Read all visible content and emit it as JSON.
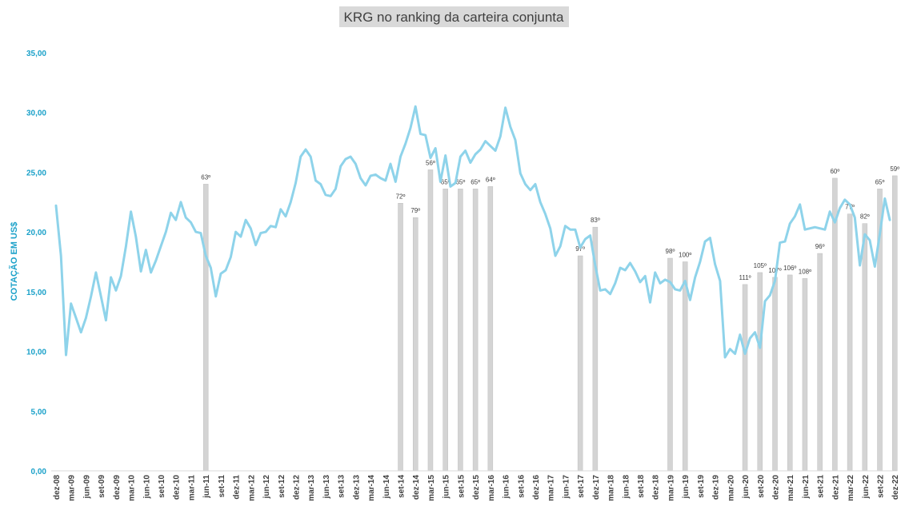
{
  "chart_data": {
    "type": "line",
    "title": "KRG no ranking da carteira conjunta",
    "xlabel": "",
    "ylabel": "COTAÇÃO EM US$",
    "ylim": [
      0,
      35
    ],
    "yticks": [
      "0,00",
      "5,00",
      "10,00",
      "15,00",
      "20,00",
      "25,00",
      "30,00",
      "35,00"
    ],
    "grid": false,
    "legend": "none",
    "colors": {
      "line": "#8ed3ea",
      "bars": "#d4d4d4",
      "yaxis_text": "#1ba1c9",
      "title_bg": "#d9d9d9"
    },
    "x_tick_labels": [
      "dez-08",
      "mar-09",
      "jun-09",
      "set-09",
      "dez-09",
      "mar-10",
      "jun-10",
      "set-10",
      "dez-10",
      "mar-11",
      "jun-11",
      "set-11",
      "dez-11",
      "mar-12",
      "jun-12",
      "set-12",
      "dez-12",
      "mar-13",
      "jun-13",
      "set-13",
      "dez-13",
      "mar-14",
      "jun-14",
      "set-14",
      "dez-14",
      "mar-15",
      "jun-15",
      "set-15",
      "dez-15",
      "mar-16",
      "jun-16",
      "set-16",
      "dez-16",
      "mar-17",
      "jun-17",
      "set-17",
      "dez-17",
      "mar-18",
      "jun-18",
      "set-18",
      "dez-18",
      "mar-19",
      "jun-19",
      "set-19",
      "dez-19",
      "mar-20",
      "jun-20",
      "set-20",
      "dez-20",
      "mar-21",
      "jun-21",
      "set-21",
      "dez-21",
      "mar-22",
      "jun-22",
      "set-22",
      "dez-22"
    ],
    "price_series": {
      "start": "dez-08",
      "values": [
        22.2,
        18.0,
        9.7,
        14.0,
        12.8,
        11.6,
        12.8,
        14.6,
        16.6,
        14.6,
        12.6,
        16.2,
        15.1,
        16.3,
        18.8,
        21.7,
        19.6,
        16.7,
        18.5,
        16.6,
        17.6,
        18.8,
        20.0,
        21.6,
        21.0,
        22.5,
        21.2,
        20.8,
        20.0,
        19.9,
        18.0,
        17.0,
        14.6,
        16.5,
        16.8,
        17.9,
        20.0,
        19.6,
        21.0,
        20.3,
        18.9,
        19.9,
        20.0,
        20.5,
        20.4,
        21.9,
        21.3,
        22.5,
        24.1,
        26.3,
        26.9,
        26.3,
        24.3,
        24.0,
        23.1,
        23.0,
        23.6,
        25.5,
        26.1,
        26.3,
        25.7,
        24.5,
        23.9,
        24.7,
        24.8,
        24.5,
        24.3,
        25.7,
        24.2,
        26.3,
        27.4,
        28.7,
        30.5,
        28.2,
        28.1,
        26.2,
        27.0,
        24.2,
        26.4,
        23.8,
        24.1,
        26.3,
        26.8,
        25.8,
        26.5,
        26.9,
        27.6,
        27.2,
        26.8,
        28.0,
        30.4,
        28.8,
        27.7,
        24.9,
        24.0,
        23.5,
        24.0,
        22.5,
        21.5,
        20.3,
        18.0,
        18.8,
        20.5,
        20.2,
        20.2,
        18.7,
        19.4,
        19.7,
        17.2,
        15.1,
        15.2,
        14.8,
        15.7,
        17.0,
        16.8,
        17.4,
        16.7,
        15.8,
        16.3,
        14.1,
        16.6,
        15.7,
        16.0,
        15.8,
        15.2,
        15.1,
        15.9,
        14.3,
        16.2,
        17.5,
        19.2,
        19.5,
        17.3,
        15.9,
        9.5,
        10.2,
        9.8,
        11.4,
        9.8,
        11.1,
        11.6,
        10.3,
        14.2,
        14.7,
        15.9,
        19.1,
        19.2,
        20.7,
        21.3,
        22.3,
        20.2,
        20.3,
        20.4,
        20.3,
        20.2,
        21.7,
        20.8,
        22.0,
        22.7,
        22.3,
        21.2,
        17.2,
        19.8,
        19.3,
        17.1,
        19.8,
        22.8,
        21.0
      ]
    },
    "ranking_bars": [
      {
        "month": "jun-11",
        "price": 24.0,
        "label": "63º"
      },
      {
        "month": "set-14",
        "price": 22.4,
        "label": "72º"
      },
      {
        "month": "dez-14",
        "price": 21.2,
        "label": "79º"
      },
      {
        "month": "mar-15",
        "price": 25.2,
        "label": "56º"
      },
      {
        "month": "jun-15",
        "price": 23.6,
        "label": "65º"
      },
      {
        "month": "set-15",
        "price": 23.6,
        "label": "65º"
      },
      {
        "month": "dez-15",
        "price": 23.6,
        "label": "65º"
      },
      {
        "month": "mar-16",
        "price": 23.8,
        "label": "64º"
      },
      {
        "month": "set-17",
        "price": 18.0,
        "label": "97º"
      },
      {
        "month": "dez-17",
        "price": 20.4,
        "label": "83º"
      },
      {
        "month": "mar-19",
        "price": 17.8,
        "label": "98º"
      },
      {
        "month": "jun-19",
        "price": 17.5,
        "label": "100º"
      },
      {
        "month": "jun-20",
        "price": 15.6,
        "label": "111º"
      },
      {
        "month": "set-20",
        "price": 16.6,
        "label": "105º"
      },
      {
        "month": "dez-20",
        "price": 16.2,
        "label": "107º"
      },
      {
        "month": "mar-21",
        "price": 16.4,
        "label": "106º"
      },
      {
        "month": "jun-21",
        "price": 16.1,
        "label": "108º"
      },
      {
        "month": "set-21",
        "price": 18.2,
        "label": "96º"
      },
      {
        "month": "dez-21",
        "price": 24.5,
        "label": "60º"
      },
      {
        "month": "mar-22",
        "price": 21.5,
        "label": "77º"
      },
      {
        "month": "jun-22",
        "price": 20.7,
        "label": "82º"
      },
      {
        "month": "set-22",
        "price": 23.6,
        "label": "65º"
      },
      {
        "month": "dez-22",
        "price": 24.7,
        "label": "59º"
      }
    ]
  }
}
